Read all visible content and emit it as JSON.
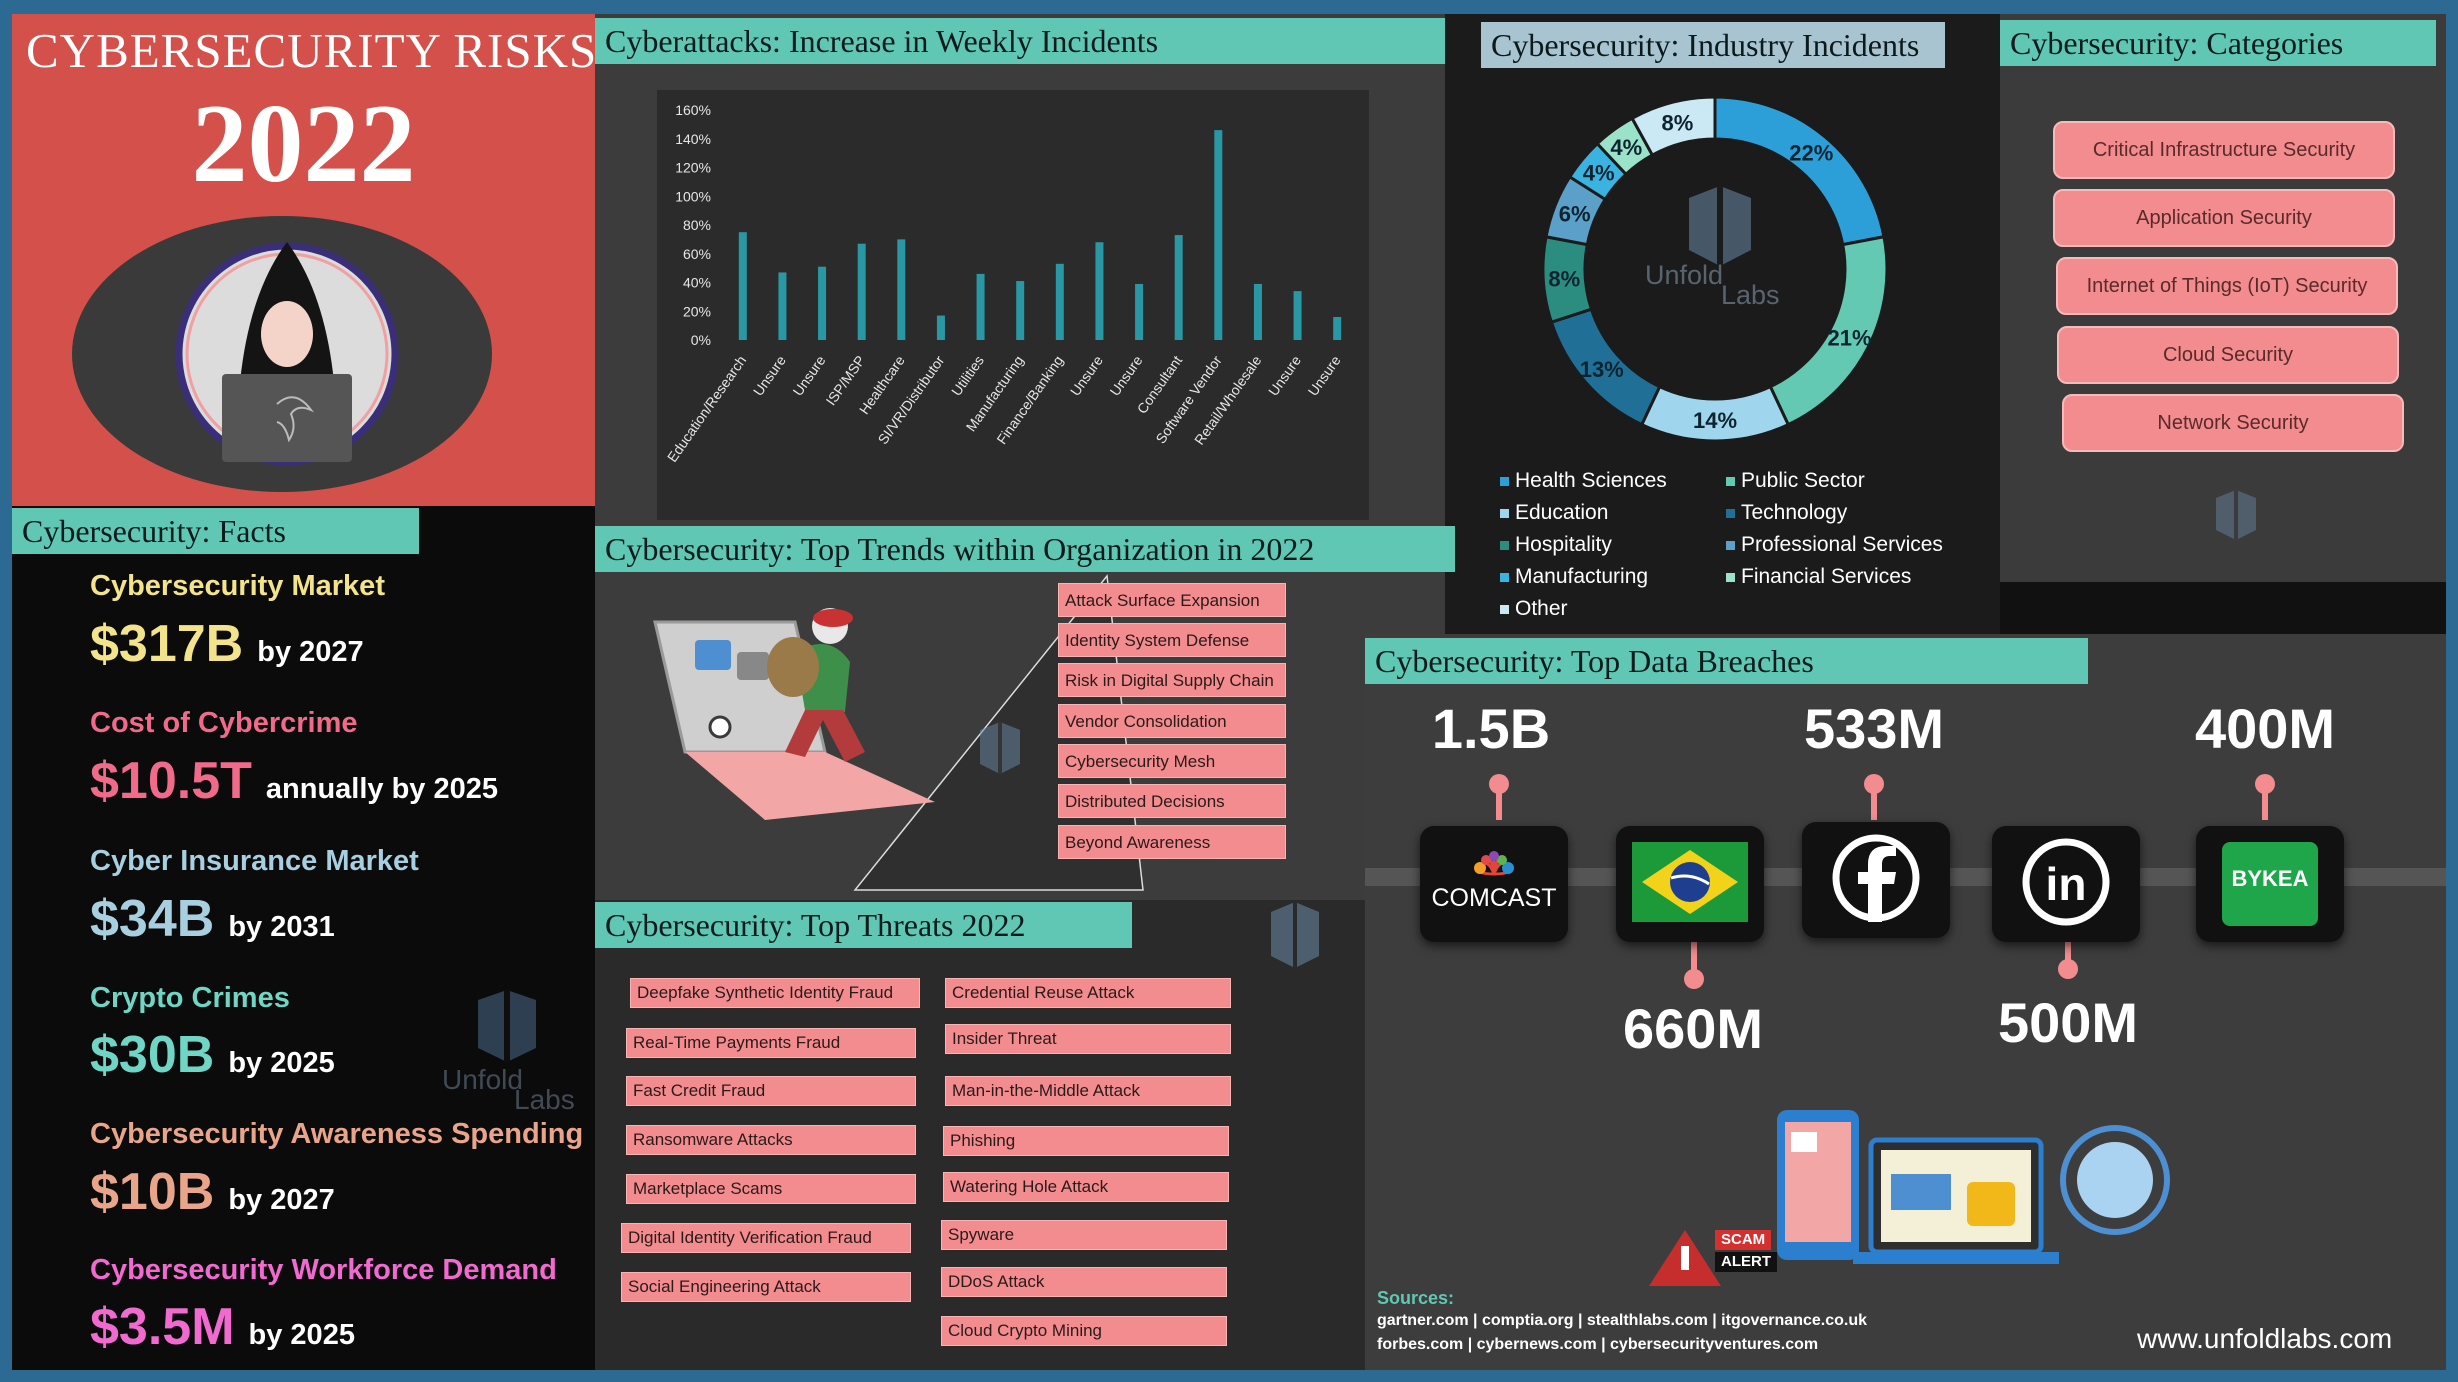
{
  "title": {
    "line1": "CYBERSECURITY RISKS",
    "year": "2022"
  },
  "facts": {
    "header": "Cybersecurity: Facts",
    "items": [
      {
        "label": "Cybersecurity Market",
        "value": "$317B",
        "suffix": "by 2027",
        "color": "#f3e48c"
      },
      {
        "label": "Cost of Cybercrime",
        "value": "$10.5T",
        "suffix": "annually by 2025",
        "color": "#f06a8a"
      },
      {
        "label": "Cyber Insurance Market",
        "value": "$34B",
        "suffix": "by 2031",
        "color": "#a8cfe0"
      },
      {
        "label": "Crypto Crimes",
        "value": "$30B",
        "suffix": "by 2025",
        "color": "#6fd6c6"
      },
      {
        "label": "Cybersecurity Awareness Spending",
        "value": "$10B",
        "suffix": "by 2027",
        "color": "#e9a58a"
      },
      {
        "label": "Cybersecurity Workforce Demand",
        "value": "$3.5M",
        "suffix": "by 2025",
        "color": "#f06ad0"
      }
    ]
  },
  "weekly": {
    "header": "Cyberattacks: Increase in Weekly Incidents"
  },
  "chart_data": {
    "type": "bar",
    "categories": [
      "Education/Research",
      "Unsure",
      "Unsure",
      "ISP/MSP",
      "Healthcare",
      "SI/VR/Distributor",
      "Utilities",
      "Manufacturing",
      "Finance/Banking",
      "Unsure",
      "Unsure",
      "Consultant",
      "Software Vendor",
      "Retail/Wholesale",
      "Unsure",
      "Unsure"
    ],
    "values": [
      75,
      47,
      51,
      67,
      70,
      17,
      46,
      41,
      53,
      68,
      39,
      73,
      146,
      39,
      34,
      16
    ],
    "ylim": [
      0,
      160
    ],
    "yticks": [
      "0%",
      "20%",
      "40%",
      "60%",
      "80%",
      "100%",
      "120%",
      "140%",
      "160%"
    ],
    "grid": false,
    "color": "#2a97a5"
  },
  "industry": {
    "header": "Cybersecurity: Industry Incidents",
    "slices": [
      {
        "name": "Health Sciences",
        "value": 22,
        "label": "22%",
        "color": "#2d9fd8"
      },
      {
        "name": "Public Sector",
        "value": 21,
        "label": "21%",
        "color": "#63c9b2"
      },
      {
        "name": "Education",
        "value": 14,
        "label": "14%",
        "color": "#9fd6ee"
      },
      {
        "name": "Technology",
        "value": 13,
        "label": "13%",
        "color": "#1f6f97"
      },
      {
        "name": "Hospitality",
        "value": 8,
        "label": "8%",
        "color": "#2b8d80"
      },
      {
        "name": "Professional Services",
        "value": 6,
        "label": "6%",
        "color": "#5aa0c8"
      },
      {
        "name": "Manufacturing",
        "value": 4,
        "label": "4%",
        "color": "#3bb3e0"
      },
      {
        "name": "Financial Services",
        "value": 4,
        "label": "4%",
        "color": "#9be3c8"
      },
      {
        "name": "Other",
        "value": 8,
        "label": "8%",
        "color": "#cbe9f5"
      }
    ],
    "legend": [
      "Health Sciences",
      "Public Sector",
      "Education",
      "Technology",
      "Hospitality",
      "Professional Services",
      "Manufacturing",
      "Financial Services",
      "Other"
    ],
    "watermark": "Unfold Labs"
  },
  "categories": {
    "header": "Cybersecurity: Categories",
    "items": [
      "Critical Infrastructure  Security",
      "Application Security",
      "Internet  of Things (IoT) Security",
      "Cloud Security",
      "Network Security"
    ]
  },
  "trends": {
    "header": "Cybersecurity: Top Trends within Organization in 2022",
    "items": [
      "Attack Surface Expansion",
      "Identity System Defense",
      "Risk in  Digital Supply Chain",
      "Vendor Consolidation",
      "Cybersecurity Mesh",
      "Distributed Decisions",
      "Beyond Awareness"
    ]
  },
  "threats": {
    "header": "Cybersecurity: Top Threats 2022",
    "left": [
      "Deepfake Synthetic Identity Fraud",
      "Real-Time Payments Fraud",
      "Fast Credit Fraud",
      "Ransomware Attacks",
      "Marketplace Scams",
      "Digital Identity Verification Fraud",
      "Social Engineering Attack"
    ],
    "right": [
      "Credential Reuse Attack",
      "Insider Threat",
      "Man-in-the-Middle Attack",
      "Phishing",
      "Watering Hole Attack",
      "Spyware",
      "DDoS Attack",
      "Cloud Crypto Mining"
    ]
  },
  "breaches": {
    "header": "Cybersecurity: Top Data Breaches",
    "items": [
      {
        "company": "COMCAST",
        "amount": "1.5B",
        "position": "top"
      },
      {
        "company": "Brazil",
        "amount": "660M",
        "position": "bottom"
      },
      {
        "company": "Facebook",
        "amount": "533M",
        "position": "top"
      },
      {
        "company": "LinkedIn",
        "amount": "500M",
        "position": "bottom"
      },
      {
        "company": "BYKEA",
        "amount": "400M",
        "position": "top"
      }
    ],
    "scam_badge": [
      "SCAM",
      "ALERT"
    ]
  },
  "sources": {
    "label": "Sources:",
    "line1": "gartner.com | comptia.org | stealthlabs.com | itgovernance.co.uk",
    "line2": "forbes.com | cybernews.com | cybersecurityventures.com"
  },
  "website": "www.unfoldlabs.com",
  "watermark": {
    "a": "Unfold",
    "b": "Labs"
  }
}
